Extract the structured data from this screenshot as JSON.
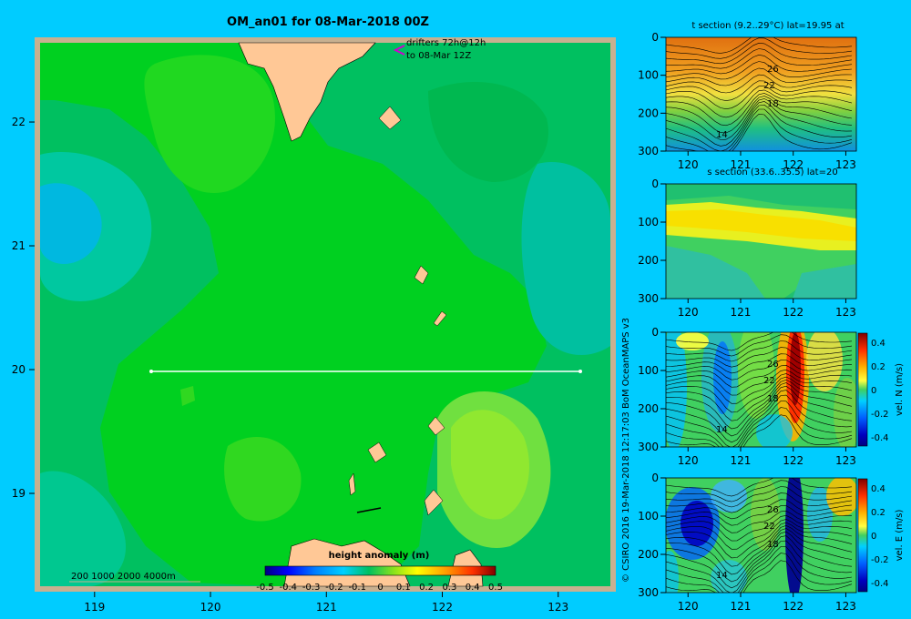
{
  "title": "OM_an01 for 08-Mar-2018 00Z",
  "map": {
    "lon_ticks": [
      "119",
      "120",
      "121",
      "122",
      "123"
    ],
    "lat_ticks": [
      "22",
      "21",
      "20",
      "19"
    ],
    "drifters_line1": "drifters 72h@12h",
    "drifters_line2": "to 08-Mar 12Z",
    "depth_legend": "200  1000  2000  4000m",
    "colorbar_title": "height anomaly  (m)",
    "colorbar_ticks": [
      "-0.5",
      "-0.4",
      "-0.3",
      "-0.2",
      "-0.1",
      "0",
      "0.1",
      "0.2",
      "0.3",
      "0.4",
      "0.5"
    ],
    "section_line": {
      "lat": 20,
      "lon_from": 119.5,
      "lon_to": 123.2
    }
  },
  "panels": {
    "t_section": {
      "title": "t section (9.2..29°C) lat=19.95 at",
      "contour_labels": [
        "26",
        "22",
        "18",
        "14"
      ]
    },
    "s_section": {
      "title": "s section (33.6..35.5) lat=20"
    },
    "v_section": {
      "contour_labels": [
        "26",
        "22",
        "18",
        "14"
      ],
      "colorbar_label": "vel. N  (m/s)"
    },
    "u_section": {
      "contour_labels": [
        "26",
        "22",
        "18",
        "14"
      ],
      "colorbar_label": "vel. E  (m/s)"
    },
    "depth_ticks": [
      "0",
      "100",
      "200",
      "300"
    ],
    "lon_ticks": [
      "120",
      "121",
      "122",
      "123"
    ],
    "vel_ticks": [
      "0.4",
      "0.2",
      "0",
      "-0.2",
      "-0.4"
    ]
  },
  "credit": "© CSIRO 2016   19-Mar-2018 12:17:03 BoM OceanMAPS v3"
}
